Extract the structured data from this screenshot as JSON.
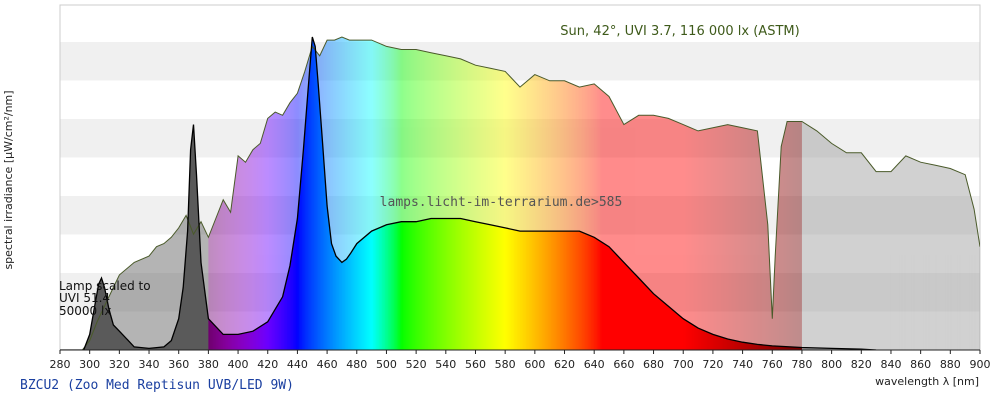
{
  "chart_data": {
    "type": "area",
    "title": "BZCU2 (Zoo Med Reptisun UVB/LED 9W)",
    "xlabel": "wavelength λ [nm]",
    "ylabel": "spectral irradiance [µW/cm²/nm]",
    "xlim": [
      280,
      900
    ],
    "ylim": [
      0,
      1
    ],
    "x_ticks": [
      280,
      300,
      320,
      340,
      360,
      380,
      400,
      420,
      440,
      460,
      480,
      500,
      520,
      540,
      560,
      580,
      600,
      620,
      640,
      660,
      680,
      700,
      720,
      740,
      760,
      780,
      800,
      820,
      840,
      860,
      880,
      900
    ],
    "grid": "horizontal bands",
    "annotations": {
      "sun": "Sun, 42°, UVI 3.7, 116 000 lx (ASTM)",
      "watermark": "lamps.licht-im-terrarium.de>585",
      "lamp_note": [
        "Lamp scaled to",
        "UVI 51.4",
        "50000 lx"
      ]
    },
    "series": [
      {
        "name": "Sun, 42°, UVI 3.7, 116 000 lx (ASTM)",
        "x": [
          295,
          300,
          305,
          310,
          315,
          320,
          330,
          340,
          345,
          350,
          355,
          360,
          365,
          370,
          375,
          380,
          385,
          390,
          395,
          400,
          405,
          410,
          415,
          420,
          425,
          430,
          435,
          440,
          445,
          450,
          455,
          460,
          465,
          470,
          475,
          480,
          490,
          500,
          510,
          520,
          530,
          540,
          550,
          560,
          570,
          580,
          590,
          600,
          610,
          620,
          630,
          640,
          650,
          660,
          670,
          680,
          690,
          700,
          710,
          720,
          730,
          740,
          750,
          757,
          760,
          762,
          766,
          770,
          775,
          780,
          790,
          800,
          810,
          820,
          830,
          840,
          850,
          860,
          870,
          880,
          890,
          896,
          900
        ],
        "values": [
          0.0,
          0.03,
          0.09,
          0.14,
          0.19,
          0.24,
          0.28,
          0.3,
          0.33,
          0.34,
          0.36,
          0.39,
          0.43,
          0.37,
          0.41,
          0.36,
          0.42,
          0.48,
          0.44,
          0.62,
          0.6,
          0.64,
          0.66,
          0.74,
          0.76,
          0.75,
          0.79,
          0.82,
          0.89,
          0.97,
          0.94,
          0.99,
          0.99,
          1.0,
          0.99,
          0.99,
          0.99,
          0.97,
          0.96,
          0.96,
          0.95,
          0.94,
          0.93,
          0.91,
          0.9,
          0.89,
          0.84,
          0.88,
          0.86,
          0.86,
          0.84,
          0.85,
          0.81,
          0.72,
          0.75,
          0.75,
          0.74,
          0.72,
          0.7,
          0.71,
          0.72,
          0.71,
          0.7,
          0.4,
          0.1,
          0.3,
          0.65,
          0.73,
          0.73,
          0.73,
          0.7,
          0.66,
          0.63,
          0.63,
          0.57,
          0.57,
          0.62,
          0.6,
          0.59,
          0.58,
          0.56,
          0.45,
          0.33
        ],
        "color": "#808080"
      },
      {
        "name": "BZCU2 (Zoo Med Reptisun UVB/LED 9W)",
        "x": [
          280,
          296,
          300,
          303,
          306,
          308,
          310,
          313,
          316,
          320,
          326,
          330,
          340,
          350,
          355,
          360,
          363,
          366,
          368,
          370,
          372,
          375,
          380,
          390,
          400,
          410,
          420,
          430,
          435,
          440,
          444,
          447,
          450,
          452,
          454,
          457,
          460,
          463,
          466,
          470,
          473,
          476,
          480,
          490,
          500,
          510,
          520,
          530,
          540,
          550,
          560,
          570,
          580,
          590,
          600,
          610,
          620,
          630,
          640,
          650,
          660,
          670,
          680,
          690,
          700,
          710,
          720,
          730,
          740,
          750,
          760,
          780,
          800,
          820,
          830
        ],
        "values": [
          0.0,
          0.0,
          0.05,
          0.13,
          0.21,
          0.23,
          0.2,
          0.13,
          0.08,
          0.06,
          0.03,
          0.01,
          0.005,
          0.01,
          0.03,
          0.1,
          0.2,
          0.38,
          0.64,
          0.72,
          0.56,
          0.28,
          0.1,
          0.05,
          0.05,
          0.06,
          0.09,
          0.17,
          0.27,
          0.42,
          0.64,
          0.82,
          1.0,
          0.97,
          0.85,
          0.66,
          0.46,
          0.34,
          0.3,
          0.28,
          0.29,
          0.31,
          0.34,
          0.38,
          0.4,
          0.41,
          0.41,
          0.42,
          0.42,
          0.42,
          0.41,
          0.4,
          0.39,
          0.38,
          0.38,
          0.38,
          0.38,
          0.38,
          0.36,
          0.33,
          0.28,
          0.23,
          0.18,
          0.14,
          0.1,
          0.07,
          0.05,
          0.035,
          0.025,
          0.018,
          0.013,
          0.008,
          0.005,
          0.003,
          0.0
        ],
        "color": "#000000"
      }
    ]
  }
}
